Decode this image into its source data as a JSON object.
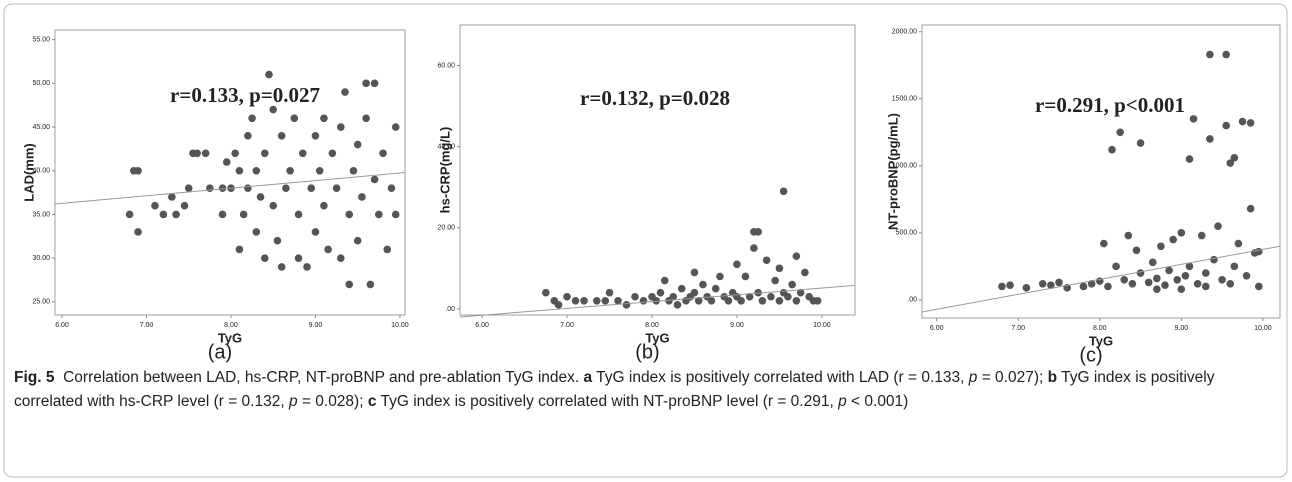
{
  "chart_data": [
    {
      "type": "scatter",
      "panel": "(a)",
      "annotation": "r=0.133, p=0.027",
      "xlabel": "TyG",
      "ylabel": "LAD(mm)",
      "color": "#555555",
      "xlim": [
        5.917,
        10.06
      ],
      "ylim": [
        23.5,
        56.1
      ],
      "xticks": [
        {
          "value": 6,
          "label": "6.00"
        },
        {
          "value": 7,
          "label": "7.00"
        },
        {
          "value": 8,
          "label": "8.00"
        },
        {
          "value": 9,
          "label": "9.00"
        },
        {
          "value": 10,
          "label": "10.00"
        }
      ],
      "yticks": [
        {
          "value": 25,
          "label": "25.00"
        },
        {
          "value": 30,
          "label": "30.00"
        },
        {
          "value": 35,
          "label": "35.00"
        },
        {
          "value": 40,
          "label": "40.00"
        },
        {
          "value": 45,
          "label": "45.00"
        },
        {
          "value": 50,
          "label": "50.00"
        },
        {
          "value": 55,
          "label": "55.00"
        }
      ],
      "x": [
        6.8,
        6.85,
        6.9,
        6.9,
        7.1,
        7.2,
        7.3,
        7.35,
        7.45,
        7.5,
        7.55,
        7.6,
        7.7,
        7.75,
        7.9,
        7.9,
        7.95,
        8.0,
        8.05,
        8.1,
        8.1,
        8.15,
        8.2,
        8.2,
        8.25,
        8.3,
        8.3,
        8.35,
        8.4,
        8.4,
        8.45,
        8.5,
        8.5,
        8.55,
        8.6,
        8.6,
        8.65,
        8.7,
        8.75,
        8.8,
        8.8,
        8.85,
        8.9,
        8.95,
        9.0,
        9.0,
        9.05,
        9.1,
        9.1,
        9.15,
        9.2,
        9.25,
        9.3,
        9.3,
        9.35,
        9.4,
        9.4,
        9.45,
        9.5,
        9.5,
        9.55,
        9.6,
        9.6,
        9.65,
        9.7,
        9.7,
        9.75,
        9.8,
        9.85,
        9.9,
        9.95,
        9.95
      ],
      "values": [
        35,
        40,
        40,
        33,
        36,
        35,
        37,
        35,
        36,
        38,
        42,
        42,
        42,
        38,
        35,
        38,
        41,
        38,
        42,
        40,
        31,
        35,
        38,
        44,
        46,
        33,
        40,
        37,
        30,
        42,
        51,
        47,
        36,
        32,
        29,
        44,
        38,
        40,
        46,
        30,
        35,
        42,
        29,
        38,
        44,
        33,
        40,
        46,
        36,
        31,
        42,
        38,
        45,
        30,
        49,
        27,
        35,
        40,
        43,
        32,
        37,
        50,
        46,
        27,
        50,
        39,
        35,
        42,
        31,
        38,
        45,
        35
      ],
      "fit_line": {
        "x": [
          5.917,
          10.06
        ],
        "values": [
          36.2,
          39.8
        ]
      }
    },
    {
      "type": "scatter",
      "panel": "(b)",
      "annotation": "r=0.132, p=0.028",
      "xlabel": "TyG",
      "ylabel": "hs-CRP(mg/L)",
      "color": "#555555",
      "xlim": [
        5.74,
        10.39
      ],
      "ylim": [
        -1.5,
        70
      ],
      "xticks": [
        {
          "value": 6,
          "label": "6.00"
        },
        {
          "value": 7,
          "label": "7.00"
        },
        {
          "value": 8,
          "label": "8.00"
        },
        {
          "value": 9,
          "label": "9.00"
        },
        {
          "value": 10,
          "label": "10.00"
        }
      ],
      "yticks": [
        {
          "value": 0,
          "label": ".00"
        },
        {
          "value": 20,
          "label": "20.00"
        },
        {
          "value": 40,
          "label": "40.00"
        },
        {
          "value": 60,
          "label": "60.00"
        }
      ],
      "x": [
        6.75,
        6.85,
        6.9,
        7.0,
        7.1,
        7.2,
        7.35,
        7.45,
        7.5,
        7.6,
        7.7,
        7.8,
        7.9,
        8.0,
        8.05,
        8.1,
        8.15,
        8.2,
        8.25,
        8.3,
        8.35,
        8.4,
        8.45,
        8.5,
        8.5,
        8.55,
        8.6,
        8.65,
        8.7,
        8.75,
        8.8,
        8.85,
        8.9,
        8.95,
        9.0,
        9.0,
        9.05,
        9.1,
        9.15,
        9.2,
        9.2,
        9.25,
        9.25,
        9.3,
        9.35,
        9.4,
        9.45,
        9.5,
        9.5,
        9.55,
        9.55,
        9.6,
        9.65,
        9.7,
        9.7,
        9.75,
        9.8,
        9.85,
        9.9,
        9.95
      ],
      "values": [
        4,
        2,
        1,
        3,
        2,
        2,
        2,
        2,
        4,
        2,
        1,
        3,
        2,
        3,
        2,
        4,
        7,
        2,
        3,
        1,
        5,
        2,
        3,
        4,
        9,
        2,
        6,
        3,
        2,
        5,
        8,
        3,
        2,
        4,
        11,
        3,
        2,
        8,
        3,
        19,
        15,
        19,
        4,
        2,
        12,
        3,
        7,
        10,
        2,
        29,
        4,
        3,
        6,
        13,
        2,
        4,
        9,
        3,
        2,
        2
      ],
      "fit_line": {
        "x": [
          5.74,
          10.39
        ],
        "values": [
          -2,
          5.8
        ]
      }
    },
    {
      "type": "scatter",
      "panel": "(c)",
      "annotation": "r=0.291, p<0.001",
      "xlabel": "TyG",
      "ylabel": "NT-proBNP(pg/mL)",
      "color": "#555555",
      "xlim": [
        5.82,
        10.21
      ],
      "ylim": [
        -135,
        2050
      ],
      "xticks": [
        {
          "value": 6,
          "label": "6.00"
        },
        {
          "value": 7,
          "label": "7.00"
        },
        {
          "value": 8,
          "label": "8.00"
        },
        {
          "value": 9,
          "label": "9.00"
        },
        {
          "value": 10,
          "label": "10.00"
        }
      ],
      "yticks": [
        {
          "value": 0,
          "label": ".00"
        },
        {
          "value": 500,
          "label": "500.00"
        },
        {
          "value": 1000,
          "label": "1000.00"
        },
        {
          "value": 1500,
          "label": "1500.00"
        },
        {
          "value": 2000,
          "label": "2000.00"
        }
      ],
      "x": [
        6.8,
        6.9,
        7.1,
        7.3,
        7.4,
        7.5,
        7.6,
        7.8,
        7.9,
        8.0,
        8.05,
        8.1,
        8.15,
        8.2,
        8.25,
        8.3,
        8.35,
        8.4,
        8.45,
        8.5,
        8.5,
        8.6,
        8.65,
        8.7,
        8.75,
        8.8,
        8.85,
        8.9,
        8.95,
        9.0,
        9.05,
        9.1,
        9.1,
        9.15,
        9.2,
        9.25,
        9.3,
        9.35,
        9.35,
        9.4,
        9.45,
        9.5,
        9.55,
        9.55,
        9.6,
        9.65,
        9.65,
        9.7,
        9.75,
        9.8,
        9.85,
        9.85,
        9.9,
        9.95,
        9.95,
        9.6,
        9.3,
        9.0,
        8.7
      ],
      "values": [
        100,
        110,
        90,
        120,
        110,
        130,
        90,
        100,
        120,
        140,
        420,
        100,
        1120,
        250,
        1250,
        150,
        480,
        120,
        370,
        1170,
        200,
        130,
        280,
        160,
        400,
        110,
        220,
        450,
        150,
        500,
        180,
        1050,
        250,
        1350,
        120,
        480,
        200,
        1830,
        1200,
        300,
        550,
        150,
        1300,
        1830,
        1020,
        250,
        1060,
        420,
        1330,
        180,
        1320,
        680,
        350,
        100,
        360,
        120,
        100,
        80,
        80
      ],
      "fit_line": {
        "x": [
          5.82,
          10.21
        ],
        "values": [
          -90,
          400
        ]
      }
    }
  ],
  "caption": {
    "label": "Fig. 5",
    "title": "Correlation between LAD, hs-CRP, NT-proBNP and pre-ablation TyG index.",
    "items": [
      {
        "letter": "a",
        "pre": "TyG index is positively correlated with LAD (r = 0.133,",
        "p": "p",
        "post": "= 0.027);"
      },
      {
        "letter": "b",
        "pre": "TyG index is positively correlated with hs-CRP level (r = 0.132,",
        "p": "p",
        "post": "= 0.028);"
      },
      {
        "letter": "c",
        "pre": "TyG index is positively correlated with NT-proBNP level (r = 0.291,",
        "p": "p",
        "post": "< 0.001)"
      }
    ]
  }
}
